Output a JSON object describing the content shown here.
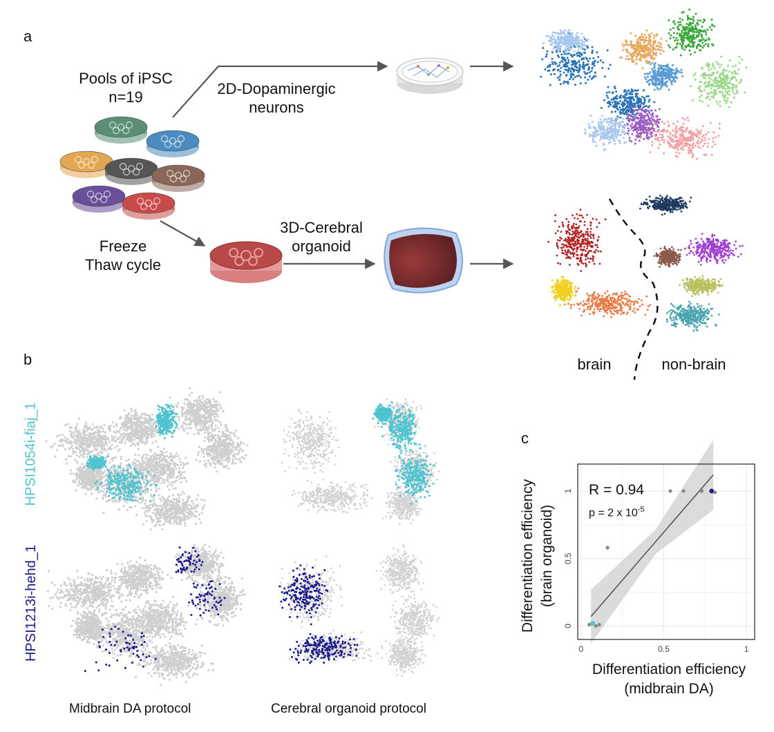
{
  "panels": {
    "a": "a",
    "b": "b",
    "c": "c"
  },
  "panel_a": {
    "pools_label": "Pools of iPSC",
    "pools_n": "n=19",
    "freeze_line1": "Freeze",
    "freeze_line2": "Thaw cycle",
    "da_line1": "2D-Dopaminergic",
    "da_line2": "neurons",
    "org_line1": "3D-Cerebral",
    "org_line2": "organoid",
    "brain_label": "brain",
    "nonbrain_label": "non-brain",
    "dish_colors": [
      "#5a8f74",
      "#4a8cc0",
      "#e3a651",
      "#555555",
      "#8a6659",
      "#6a4f9a",
      "#c84a4a"
    ],
    "umap_da_colors": [
      "#2a73b6",
      "#a9c8ec",
      "#e8a860",
      "#3aa83a",
      "#9ad88a",
      "#9b5fc0",
      "#f2a0a0",
      "#5b9bd5"
    ],
    "umap_org_colors": [
      "#b22222",
      "#f0d020",
      "#e87b45",
      "#1f3a5f",
      "#8b5a4a",
      "#a040d0",
      "#b8c060",
      "#4aa3b0"
    ]
  },
  "panel_b": {
    "row1_label": "HPSI1054i-fiaj_1",
    "row2_label": "HPSI1213i-hehd_1",
    "row1_color": "#4fc3d0",
    "row2_color": "#1a1a8c",
    "col1_label": "Midbrain DA protocol",
    "col2_label": "Cerebral organoid protocol"
  },
  "chart_data": {
    "type": "scatter",
    "title": "",
    "xlabel_line1": "Differentiation efficiency",
    "xlabel_line2": "(midbrain DA)",
    "ylabel_line1": "Differentiation efficiency",
    "ylabel_line2": "(brain organoid)",
    "xlim": [
      -0.02,
      1.05
    ],
    "ylim": [
      -0.1,
      1.2
    ],
    "xticks": [
      "0",
      "0.5",
      "1"
    ],
    "yticks": [
      "0",
      "0.5",
      "1"
    ],
    "xtick_values": [
      0,
      0.5,
      1
    ],
    "ytick_values": [
      0,
      0.5,
      1
    ],
    "grid": true,
    "annotation_r": "R = 0.94",
    "annotation_p": "p = 2 x 10",
    "annotation_p_exp": "-5",
    "fit_line": {
      "x": [
        0.06,
        0.8
      ],
      "y": [
        0.07,
        1.12
      ]
    },
    "points": [
      {
        "x": 0.05,
        "y": 0.01,
        "color": "#888888"
      },
      {
        "x": 0.07,
        "y": 0.02,
        "color": "#4fc3d0"
      },
      {
        "x": 0.09,
        "y": 0.0,
        "color": "#888888"
      },
      {
        "x": 0.11,
        "y": 0.01,
        "color": "#888888"
      },
      {
        "x": 0.16,
        "y": 0.58,
        "color": "#888888"
      },
      {
        "x": 0.54,
        "y": 1.0,
        "color": "#888888"
      },
      {
        "x": 0.62,
        "y": 1.0,
        "color": "#888888"
      },
      {
        "x": 0.73,
        "y": 1.0,
        "color": "#888888"
      },
      {
        "x": 0.79,
        "y": 1.0,
        "color": "#1a1a8c"
      },
      {
        "x": 0.81,
        "y": 0.99,
        "color": "#888888"
      }
    ]
  }
}
